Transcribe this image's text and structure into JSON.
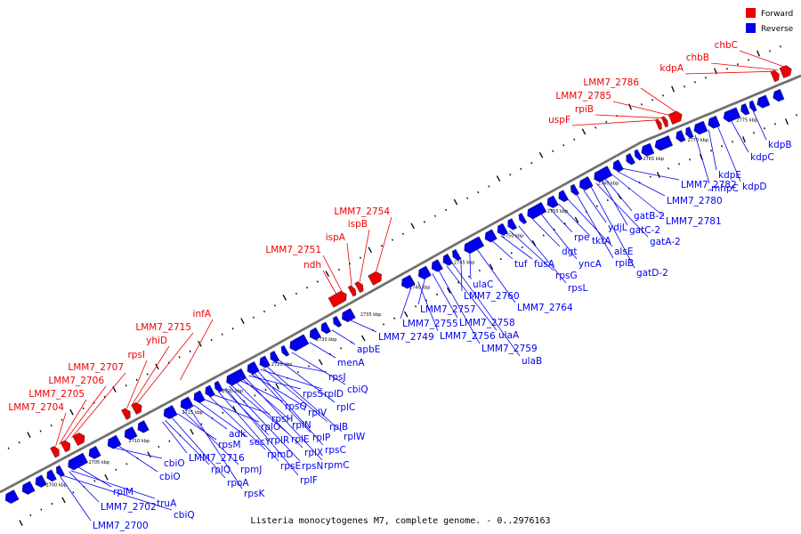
{
  "caption": "Listeria monocytogenes M7, complete genome. - 0..2976163",
  "legend": {
    "forward_label": "Forward",
    "reverse_label": "Reverse",
    "forward_color": "#ee0000",
    "reverse_color": "#0000ee"
  },
  "colors": {
    "forward": "#ee0000",
    "reverse": "#0000ee",
    "backbone": "#888888",
    "leader": "#333333"
  },
  "ticks": [
    "2700 kbp",
    "2705 kbp",
    "2710 kbp",
    "2715 kbp",
    "2720 kbp",
    "2725 kbp",
    "2730 kbp",
    "2735 kbp",
    "2740 kbp",
    "2745 kbp",
    "2750 kbp",
    "2755 kbp",
    "2760 kbp",
    "2765 kbp",
    "2770 kbp",
    "2775 kbp"
  ],
  "forward_labels": [
    "LMM7_2704",
    "LMM7_2705",
    "LMM7_2706",
    "LMM7_2707",
    "rpsI",
    "yhiD",
    "LMM7_2715",
    "infA",
    "ndh",
    "LMM7_2751",
    "ispA",
    "ispB",
    "LMM7_2754",
    "uspF",
    "rpiB",
    "LMM7_2785",
    "LMM7_2786",
    "kdpA",
    "chbB",
    "chbC"
  ],
  "reverse_labels": [
    "LMM7_2700",
    "cbiQ",
    "LMM7_2702",
    "truA",
    "rplM",
    "cbiO",
    "cbiO",
    "LMM7_2716",
    "rplQ",
    "rpoA",
    "rpsM",
    "rpmJ",
    "rpsK",
    "adk",
    "secY",
    "rplO",
    "rpmD",
    "rpsH",
    "rpsE",
    "rplR",
    "rplF",
    "rpsN",
    "rplE",
    "rplX",
    "rpsQ",
    "rplN",
    "rpmC",
    "rpsS",
    "rplV",
    "rplP",
    "rpsC",
    "rplD",
    "rplB",
    "rplW",
    "rpsJ",
    "rplC",
    "cbiQ",
    "menA",
    "apbE",
    "LMM7_2749",
    "LMM7_2755",
    "LMM7_2756",
    "LMM7_2757",
    "LMM7_2758",
    "LMM7_2759",
    "ulaA",
    "ulaB",
    "LMM7_2760",
    "ulaC",
    "LMM7_2764",
    "tuf",
    "fusA",
    "rpsG",
    "rpsL",
    "dgt",
    "yncA",
    "rpe",
    "tktA",
    "alsE",
    "rpiB",
    "ydjL",
    "gatD-2",
    "gatA-2",
    "gatC-2",
    "gatB-2",
    "LMM7_2781",
    "LMM7_2780",
    "LMM7_2782",
    "mhpC",
    "kdpE",
    "kdpD",
    "kdpC",
    "kdpB"
  ]
}
